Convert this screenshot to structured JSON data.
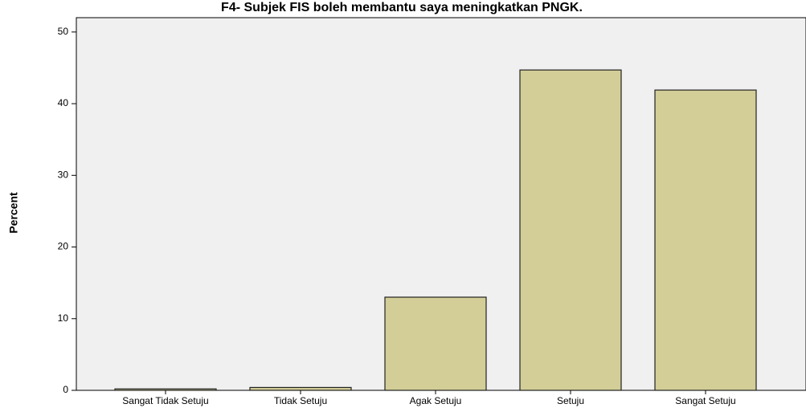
{
  "chart_data": {
    "type": "bar",
    "title": "F4- Subjek FIS boleh membantu saya meningkatkan PNGK.",
    "y_label": "Percent",
    "categories": [
      "Sangat Tidak Setuju",
      "Tidak Setuju",
      "Agak Setuju",
      "Setuju",
      "Sangat Setuju"
    ],
    "values": [
      0.2,
      0.4,
      13,
      44.7,
      41.9
    ],
    "color": "#d3ce97",
    "ylim": [
      0,
      52
    ],
    "yticks": [
      0,
      10,
      20,
      30,
      40,
      50
    ],
    "grid": false
  }
}
